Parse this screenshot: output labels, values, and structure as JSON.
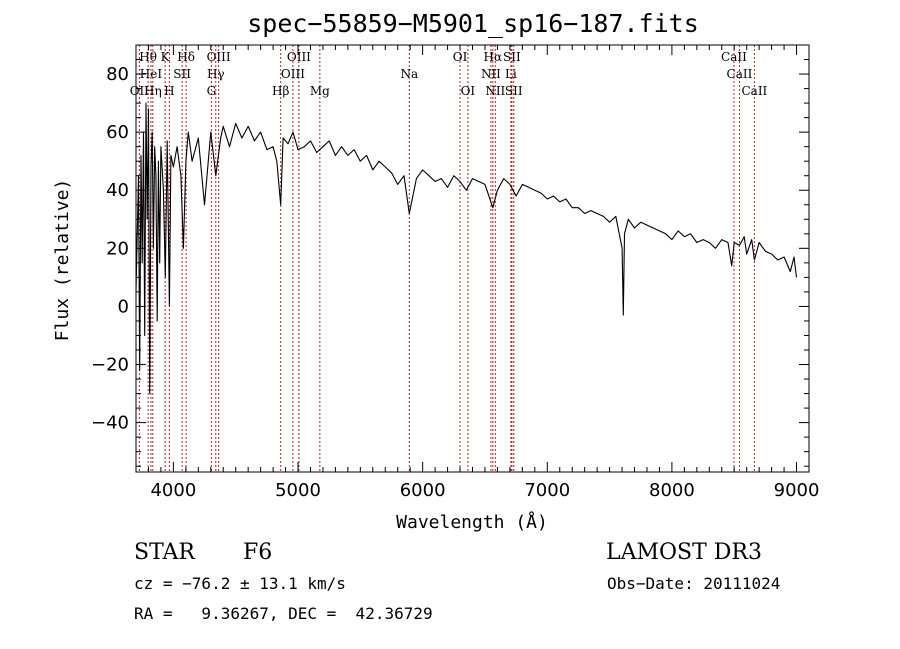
{
  "chart_data": {
    "type": "line",
    "title": "spec−55859−M5901_sp16−187.fits",
    "xlabel": "Wavelength (Å)",
    "ylabel": "Flux (relative)",
    "xlim": [
      3700,
      9100
    ],
    "ylim": [
      -57,
      90
    ],
    "grid": false,
    "x_ticks": [
      {
        "value": 4000,
        "label": "4000"
      },
      {
        "value": 5000,
        "label": "5000"
      },
      {
        "value": 6000,
        "label": "6000"
      },
      {
        "value": 7000,
        "label": "7000"
      },
      {
        "value": 8000,
        "label": "8000"
      },
      {
        "value": 9000,
        "label": "9000"
      }
    ],
    "y_ticks": [
      {
        "value": -40,
        "label": "−40"
      },
      {
        "value": -20,
        "label": "−20"
      },
      {
        "value": 0,
        "label": "0"
      },
      {
        "value": 20,
        "label": "20"
      },
      {
        "value": 40,
        "label": "40"
      },
      {
        "value": 60,
        "label": "60"
      },
      {
        "value": 80,
        "label": "80"
      }
    ],
    "series": [
      {
        "name": "flux",
        "x": [
          3700,
          3720,
          3730,
          3740,
          3750,
          3760,
          3770,
          3780,
          3790,
          3800,
          3810,
          3820,
          3830,
          3840,
          3850,
          3860,
          3870,
          3880,
          3890,
          3900,
          3920,
          3935,
          3950,
          3968,
          3980,
          4000,
          4030,
          4060,
          4080,
          4100,
          4120,
          4150,
          4200,
          4250,
          4300,
          4340,
          4380,
          4400,
          4450,
          4500,
          4550,
          4600,
          4650,
          4700,
          4750,
          4800,
          4830,
          4861,
          4880,
          4920,
          4960,
          5000,
          5050,
          5100,
          5150,
          5200,
          5250,
          5300,
          5350,
          5400,
          5450,
          5500,
          5550,
          5600,
          5650,
          5700,
          5750,
          5800,
          5850,
          5893,
          5950,
          6000,
          6050,
          6100,
          6150,
          6200,
          6250,
          6300,
          6350,
          6400,
          6450,
          6500,
          6563,
          6600,
          6650,
          6700,
          6750,
          6800,
          6850,
          6900,
          6950,
          7000,
          7050,
          7100,
          7150,
          7200,
          7250,
          7300,
          7350,
          7400,
          7450,
          7500,
          7550,
          7600,
          7610,
          7620,
          7650,
          7700,
          7750,
          7800,
          7850,
          7900,
          7950,
          8000,
          8050,
          8100,
          8150,
          8200,
          8250,
          8300,
          8350,
          8400,
          8450,
          8480,
          8500,
          8542,
          8580,
          8600,
          8640,
          8662,
          8700,
          8750,
          8800,
          8850,
          8900,
          8950,
          8980,
          9000
        ],
        "y": [
          5,
          45,
          -22,
          52,
          15,
          60,
          -10,
          70,
          30,
          68,
          -30,
          48,
          60,
          20,
          55,
          45,
          -5,
          50,
          15,
          55,
          40,
          10,
          57,
          0,
          52,
          48,
          55,
          45,
          20,
          50,
          60,
          50,
          58,
          35,
          60,
          45,
          58,
          62,
          55,
          63,
          58,
          62,
          57,
          60,
          54,
          55,
          50,
          35,
          58,
          56,
          60,
          54,
          55,
          57,
          53,
          55,
          57,
          52,
          55,
          52,
          54,
          50,
          52,
          47,
          50,
          48,
          46,
          42,
          45,
          32,
          44,
          47,
          45,
          43,
          44,
          41,
          45,
          43,
          40,
          44,
          43,
          42,
          34,
          40,
          44,
          42,
          38,
          42,
          41,
          40,
          39,
          37,
          38,
          36,
          37,
          34,
          34,
          32,
          33,
          32,
          31,
          29,
          31,
          20,
          -3,
          25,
          30,
          27,
          29,
          28,
          27,
          26,
          25,
          23,
          26,
          24,
          25,
          22,
          23,
          22,
          20,
          23,
          22,
          14,
          22,
          21,
          24,
          18,
          23,
          16,
          22,
          19,
          18,
          16,
          17,
          12,
          17,
          10
        ]
      }
    ],
    "spectral_lines": [
      {
        "label": "OII",
        "x": 3727,
        "row": 3
      },
      {
        "label": "Hθ",
        "x": 3797,
        "row": 1
      },
      {
        "label": "HeI",
        "x": 3820,
        "row": 2
      },
      {
        "label": "Hη",
        "x": 3835,
        "row": 3
      },
      {
        "label": "K",
        "x": 3934,
        "row": 1
      },
      {
        "label": "H",
        "x": 3968,
        "row": 3
      },
      {
        "label": "SII",
        "x": 4070,
        "row": 2
      },
      {
        "label": "Hδ",
        "x": 4102,
        "row": 1
      },
      {
        "label": "OIII",
        "x": 4363,
        "row": 1
      },
      {
        "label": "Hγ",
        "x": 4340,
        "row": 2
      },
      {
        "label": "G",
        "x": 4305,
        "row": 3
      },
      {
        "label": "Hβ",
        "x": 4861,
        "row": 3
      },
      {
        "label": "OIII",
        "x": 4959,
        "row": 2
      },
      {
        "label": "OIII",
        "x": 5007,
        "row": 1
      },
      {
        "label": "Mg",
        "x": 5175,
        "row": 3
      },
      {
        "label": "Na",
        "x": 5893,
        "row": 2
      },
      {
        "label": "OI",
        "x": 6300,
        "row": 1
      },
      {
        "label": "OI",
        "x": 6363,
        "row": 3
      },
      {
        "label": "Hα",
        "x": 6563,
        "row": 1
      },
      {
        "label": "NII",
        "x": 6548,
        "row": 2
      },
      {
        "label": "NII",
        "x": 6583,
        "row": 3
      },
      {
        "label": "SII",
        "x": 6716,
        "row": 1
      },
      {
        "label": "Li",
        "x": 6708,
        "row": 2
      },
      {
        "label": "SII",
        "x": 6731,
        "row": 3
      },
      {
        "label": "CaII",
        "x": 8498,
        "row": 1
      },
      {
        "label": "CaII",
        "x": 8542,
        "row": 2
      },
      {
        "label": "CaII",
        "x": 8662,
        "row": 3
      }
    ]
  },
  "info": {
    "object_class": "STAR",
    "subclass": "F6",
    "survey": "LAMOST DR3",
    "redshift": "cz = −76.2 ± 13.1 km/s",
    "obs_date": "Obs−Date: 20111024",
    "coords": "RA =   9.36267, DEC =  42.36729"
  }
}
